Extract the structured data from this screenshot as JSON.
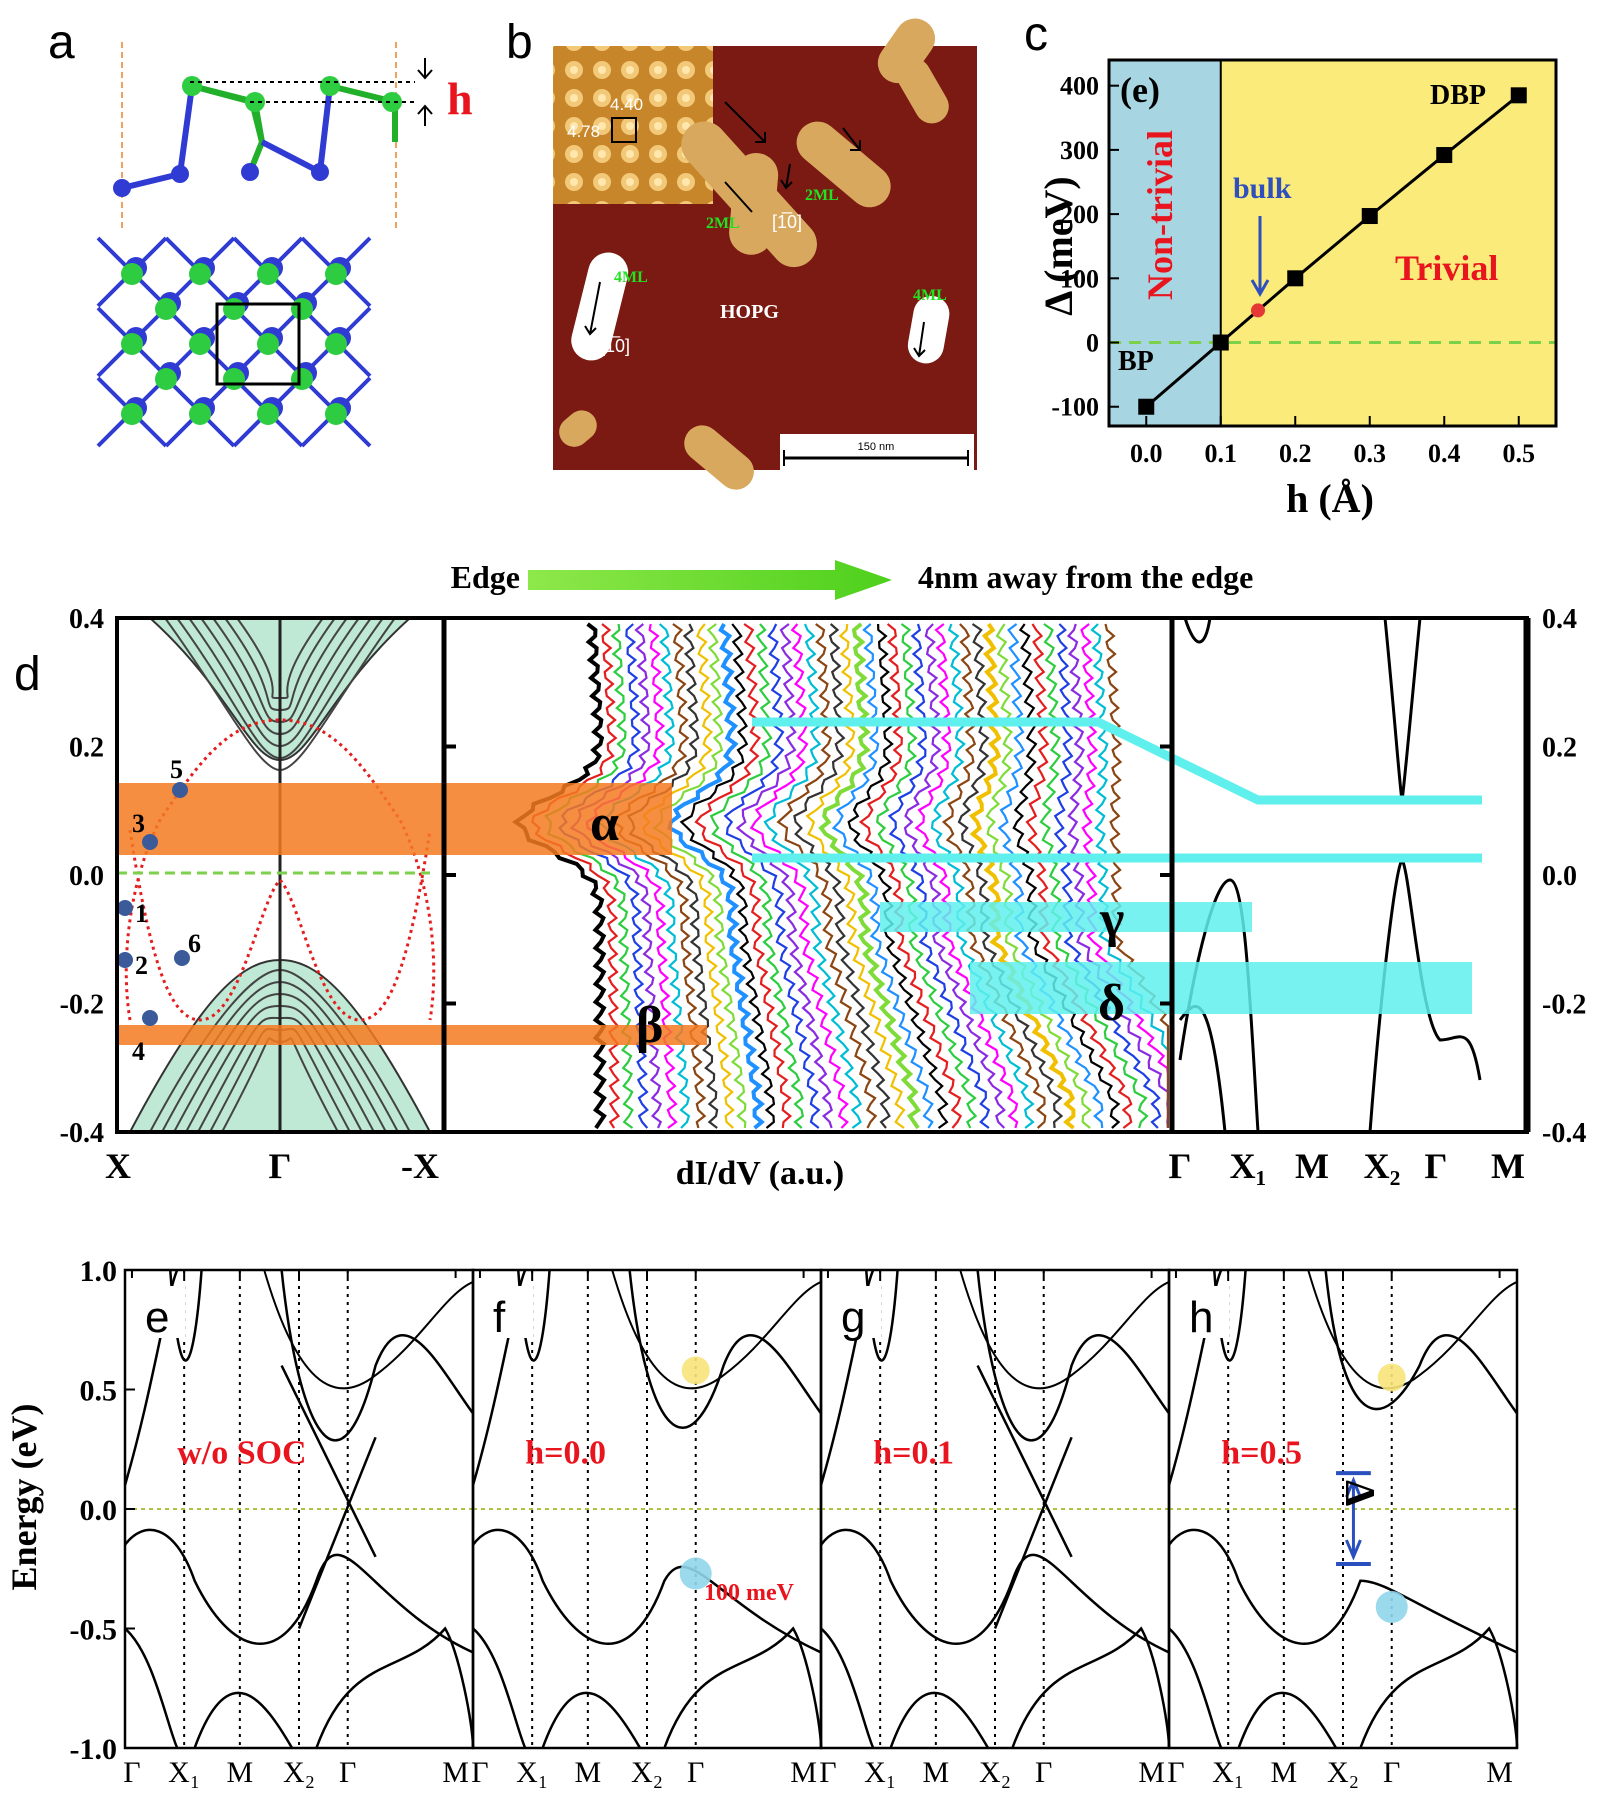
{
  "panel_labels": {
    "a": "a",
    "b": "b",
    "c": "c",
    "d": "d",
    "e": "e",
    "f": "f",
    "g": "g",
    "h": "h"
  },
  "panel_a": {
    "h_label": "h"
  },
  "panel_b": {
    "inset_values": [
      "4.40",
      "4.78"
    ],
    "labels": [
      "2ML",
      "2ML",
      "4ML",
      "4ML"
    ],
    "directions": [
      "[1̅0]",
      "[1̅0]"
    ],
    "substrate": "HOPG",
    "scalebar": "150 nm"
  },
  "panel_c": {
    "inset_tag": "(e)",
    "region_left": "Non-trivial",
    "region_right": "Trivial",
    "bulk_label": "bulk",
    "BP_label": "BP",
    "DBP_label": "DBP",
    "xlabel": "h (Å)",
    "ylabel": "Δ (meV)",
    "chart_data": {
      "type": "line",
      "x": [
        0.0,
        0.1,
        0.2,
        0.3,
        0.4,
        0.5
      ],
      "y": [
        -100,
        0,
        100,
        197,
        292,
        385
      ],
      "bulk_point": {
        "x": 0.15,
        "y": 50
      },
      "xlim": [
        -0.05,
        0.55
      ],
      "ylim": [
        -130,
        440
      ],
      "xticks": [
        "0.0",
        "0.1",
        "0.2",
        "0.3",
        "0.4",
        "0.5"
      ],
      "yticks": [
        "-100",
        "0",
        "100",
        "200",
        "300",
        "400"
      ],
      "colors": {
        "nontrivial": "#a8d5e2",
        "trivial": "#fbeb7a",
        "line": "#000000",
        "bulk": "#e53935"
      }
    }
  },
  "panel_d": {
    "header_left": "Edge",
    "header_right": "4nm away from the edge",
    "left_xticks": [
      "X",
      "Γ",
      "-X"
    ],
    "middle_xlabel": "dI/dV (a.u.)",
    "right_xticks": [
      "Γ",
      "X₁",
      "M",
      "X₂",
      "Γ",
      "M"
    ],
    "yticks_left": [
      "0.4",
      "0.2",
      "0.0",
      "-0.2",
      "-0.4"
    ],
    "yticks_right": [
      "0.4",
      "0.2",
      "0.0",
      "-0.2",
      "-0.4"
    ],
    "greek": [
      "α",
      "β",
      "γ",
      "δ"
    ],
    "points": [
      "1",
      "2",
      "3",
      "4",
      "5",
      "6"
    ]
  },
  "panels_efgh": {
    "ylabel": "Energy (eV)",
    "yticks": [
      "1.0",
      "0.5",
      "0.0",
      "-0.5",
      "-1.0"
    ],
    "xticks": [
      "Γ",
      "X₁",
      "M",
      "X₂",
      "Γ",
      "M"
    ],
    "titles": [
      "w/o SOC",
      "h=0.0",
      "h=0.1",
      "h=0.5"
    ],
    "gap_label": "100 meV",
    "delta": "Δ"
  }
}
